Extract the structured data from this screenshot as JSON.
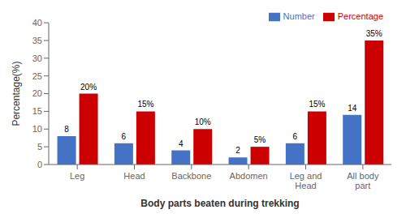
{
  "chart_data": {
    "type": "bar",
    "xlabel": "Body parts beaten during trekking",
    "ylabel": "Percentage(%)",
    "categories": [
      "Leg",
      "Head",
      "Backbone",
      "Abdomen",
      "Leg and\nHead",
      "All body\npart"
    ],
    "series": [
      {
        "name": "Number",
        "color": "#4472C4",
        "values": [
          8,
          6,
          4,
          2,
          6,
          14
        ]
      },
      {
        "name": "Percentage",
        "color": "#CC0000",
        "values": [
          20,
          15,
          10,
          5,
          15,
          35
        ],
        "value_labels": [
          "20%",
          "15%",
          "10%",
          "5%",
          "15%",
          "35%"
        ]
      }
    ],
    "ylim": [
      0,
      40
    ],
    "yticks": [
      0,
      5,
      10,
      15,
      20,
      25,
      30,
      35,
      40
    ],
    "grid": false,
    "legend": "upper right",
    "data_labels": true
  }
}
